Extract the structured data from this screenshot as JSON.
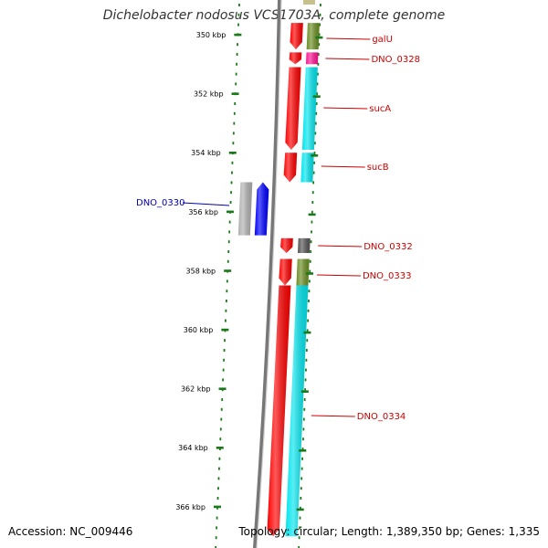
{
  "title": "Dichelobacter nodosus VCS1703A, complete genome",
  "footer": {
    "accession": "Accession: NC_009446",
    "summary": "Topology: circular; Length: 1,389,350 bp; Genes: 1,335"
  },
  "colors": {
    "backbone": "#8a8a8a",
    "ticks": "#1a7a1a",
    "forward_label": "#cc0000",
    "reverse_label": "#0000aa"
  },
  "ticks": [
    {
      "kbp": 350,
      "label": "350 kbp"
    },
    {
      "kbp": 352,
      "label": "352 kbp"
    },
    {
      "kbp": 354,
      "label": "354 kbp"
    },
    {
      "kbp": 356,
      "label": "356 kbp"
    },
    {
      "kbp": 358,
      "label": "358 kbp"
    },
    {
      "kbp": 360,
      "label": "360 kbp"
    },
    {
      "kbp": 362,
      "label": "362 kbp"
    },
    {
      "kbp": 364,
      "label": "364 kbp"
    },
    {
      "kbp": 366,
      "label": "366 kbp"
    }
  ],
  "genes": [
    {
      "name": "galU",
      "strand": "+",
      "start_kbp": 349.6,
      "end_kbp": 350.5,
      "color": "#ff0000",
      "cog_color": "#6b8e23"
    },
    {
      "name": "DNO_0328",
      "strand": "+",
      "start_kbp": 350.6,
      "end_kbp": 351.0,
      "color": "#ff0000",
      "cog_color": "#ff1493"
    },
    {
      "name": "sucA",
      "strand": "+",
      "start_kbp": 351.1,
      "end_kbp": 353.9,
      "color": "#ff0000",
      "cog_color": "#00e5ee"
    },
    {
      "name": "sucB",
      "strand": "+",
      "start_kbp": 354.0,
      "end_kbp": 355.0,
      "color": "#ff0000",
      "cog_color": "#00e5ee"
    },
    {
      "name": "DNO_0330",
      "strand": "-",
      "start_kbp": 355.0,
      "end_kbp": 356.8,
      "color": "#0000ff",
      "cog_color": "#b0b0b0"
    },
    {
      "name": "DNO_0332",
      "strand": "+",
      "start_kbp": 356.9,
      "end_kbp": 357.4,
      "color": "#ff0000",
      "cog_color": "#555555"
    },
    {
      "name": "DNO_0333",
      "strand": "+",
      "start_kbp": 357.6,
      "end_kbp": 358.5,
      "color": "#ff0000",
      "cog_color": "#6b8e23"
    },
    {
      "name": "DNO_0334",
      "strand": "+",
      "start_kbp": 358.5,
      "end_kbp": 367.0,
      "color": "#ff0000",
      "cog_color": "#00e5ee"
    }
  ]
}
